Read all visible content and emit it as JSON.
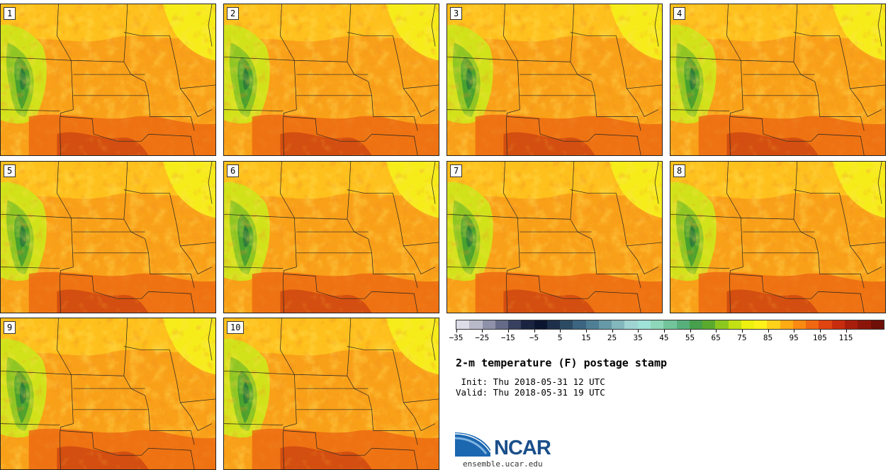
{
  "panels": [
    {
      "label": "1"
    },
    {
      "label": "2"
    },
    {
      "label": "3"
    },
    {
      "label": "4"
    },
    {
      "label": "5"
    },
    {
      "label": "6"
    },
    {
      "label": "7"
    },
    {
      "label": "8"
    },
    {
      "label": "9"
    },
    {
      "label": "10"
    }
  ],
  "colorbar": {
    "colors": [
      "#dcdde6",
      "#b8bac9",
      "#8e91a8",
      "#646a87",
      "#38405f",
      "#1a2441",
      "#0c1530",
      "#1d2f4a",
      "#2c4b63",
      "#3b6580",
      "#4f7f95",
      "#679aa8",
      "#82b7bd",
      "#9fd4d3",
      "#9fe3d8",
      "#8fd7b9",
      "#72c59a",
      "#57b07b",
      "#46a04c",
      "#5aaa2d",
      "#8cc71f",
      "#c2e014",
      "#eef00f",
      "#fff21a",
      "#ffd11a",
      "#ffab14",
      "#fa8a12",
      "#f06812",
      "#e04410",
      "#c82c0e",
      "#a81e0c",
      "#8c150a",
      "#6e0f08"
    ],
    "tick_labels": [
      "-35",
      "-25",
      "-15",
      "-5",
      "5",
      "15",
      "25",
      "35",
      "45",
      "55",
      "65",
      "75",
      "85",
      "95",
      "105",
      "115"
    ]
  },
  "title": "2-m temperature (F) postage stamp",
  "init": " Init: Thu 2018-05-31 12 UTC",
  "valid": "Valid: Thu 2018-05-31 19 UTC",
  "logo_text": "NCAR",
  "site": "ensemble.ucar.edu"
}
